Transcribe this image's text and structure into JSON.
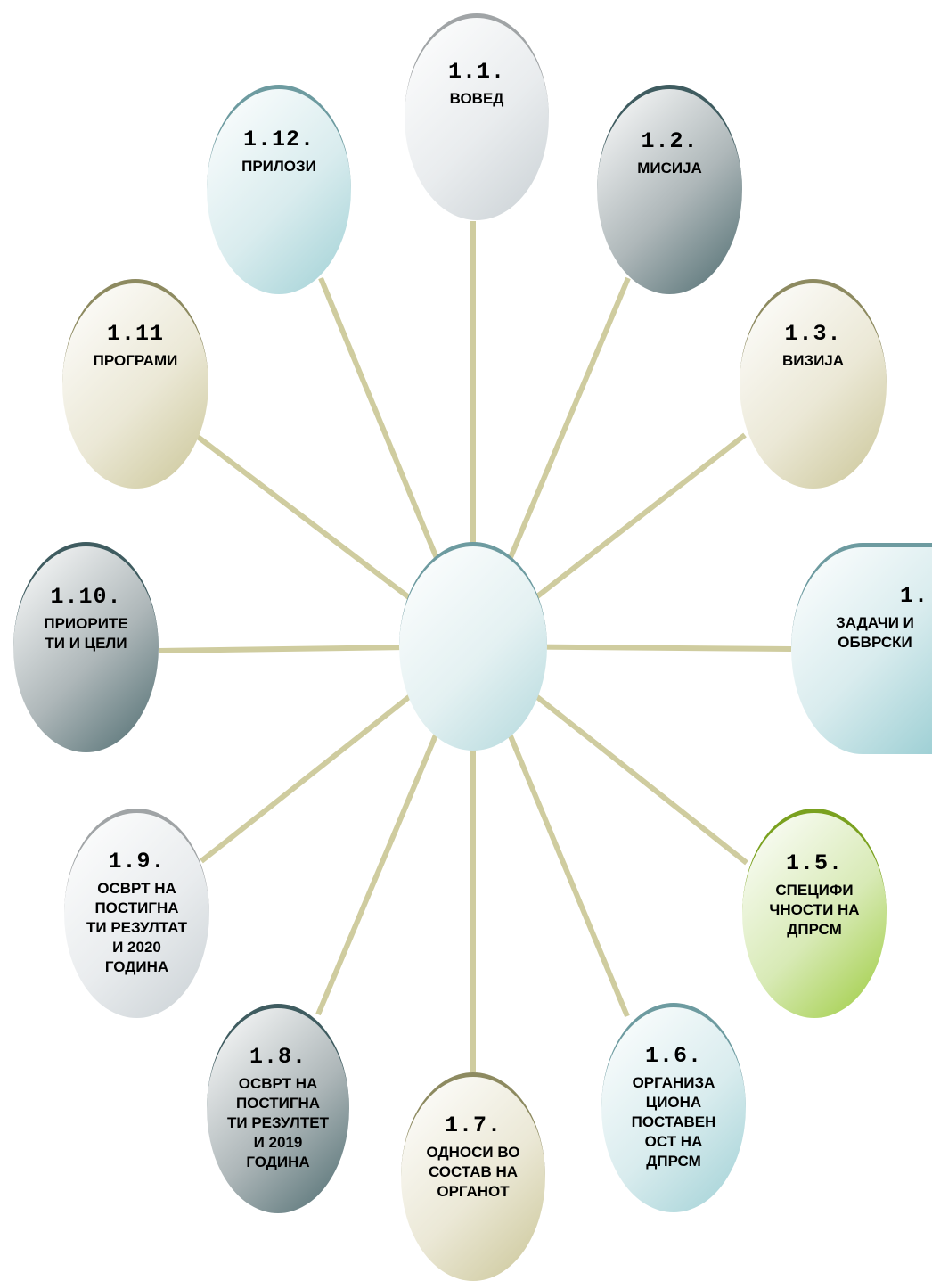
{
  "diagram": {
    "nodes": [
      {
        "id": "1-1",
        "number": "1.1.",
        "label": "ВОВЕД",
        "theme": "gray-light"
      },
      {
        "id": "1-2",
        "number": "1.2.",
        "label": "МИСИЈА",
        "theme": "slate-dark"
      },
      {
        "id": "1-3",
        "number": "1.3.",
        "label": "ВИЗИЈА",
        "theme": "olive"
      },
      {
        "id": "1-4",
        "number": "1.",
        "label": "ЗАДАЧИ И ОБВРСКИ",
        "theme": "teal"
      },
      {
        "id": "1-5",
        "number": "1.5.",
        "label": "СПЕЦИФИ ЧНОСТИ НА ДПРСМ",
        "theme": "green"
      },
      {
        "id": "1-6",
        "number": "1.6.",
        "label": "ОРГАНИЗА ЦИОНА ПОСТАВЕН ОСТ НА ДПРСМ",
        "theme": "teal"
      },
      {
        "id": "1-7",
        "number": "1.7.",
        "label": "ОДНОСИ ВО СОСТАВ НА ОРГАНОТ",
        "theme": "olive"
      },
      {
        "id": "1-8",
        "number": "1.8.",
        "label": "ОСВРТ НА ПОСТИГНА ТИ РЕЗУЛТЕТ И 2019 ГОДИНА",
        "theme": "slate-dark"
      },
      {
        "id": "1-9",
        "number": "1.9.",
        "label": "ОСВРТ НА ПОСТИГНА ТИ РЕЗУЛТАТ И 2020 ГОДИНА",
        "theme": "gray-light"
      },
      {
        "id": "1-10",
        "number": "1.10.",
        "label": "ПРИОРИТЕ ТИ И ЦЕЛИ",
        "theme": "slate-dark"
      },
      {
        "id": "1-11",
        "number": "1.11",
        "label": "ПРОГРАМИ",
        "theme": "olive"
      },
      {
        "id": "1-12",
        "number": "1.12.",
        "label": "ПРИЛОЗИ",
        "theme": "teal"
      }
    ]
  },
  "colors": {
    "spoke": "#cfcc9f",
    "gray-light": {
      "light": "#ffffff",
      "mid": "#e9ecee",
      "dark": "#c9d0d4",
      "rim": "#a0a4a6"
    },
    "slate-dark": {
      "light": "#ffffff",
      "mid": "#aeb7b9",
      "dark": "#4d6b6f",
      "rim": "#3f5c60"
    },
    "olive": {
      "light": "#ffffff",
      "mid": "#ebe8d6",
      "dark": "#cac596",
      "rim": "#8d8a60"
    },
    "teal": {
      "light": "#ffffff",
      "mid": "#d9ecee",
      "dark": "#9fd0d5",
      "rim": "#6d9ba0"
    },
    "green": {
      "light": "#ffffff",
      "mid": "#d8eab6",
      "dark": "#9ccb3c",
      "rim": "#7aa11f"
    }
  }
}
